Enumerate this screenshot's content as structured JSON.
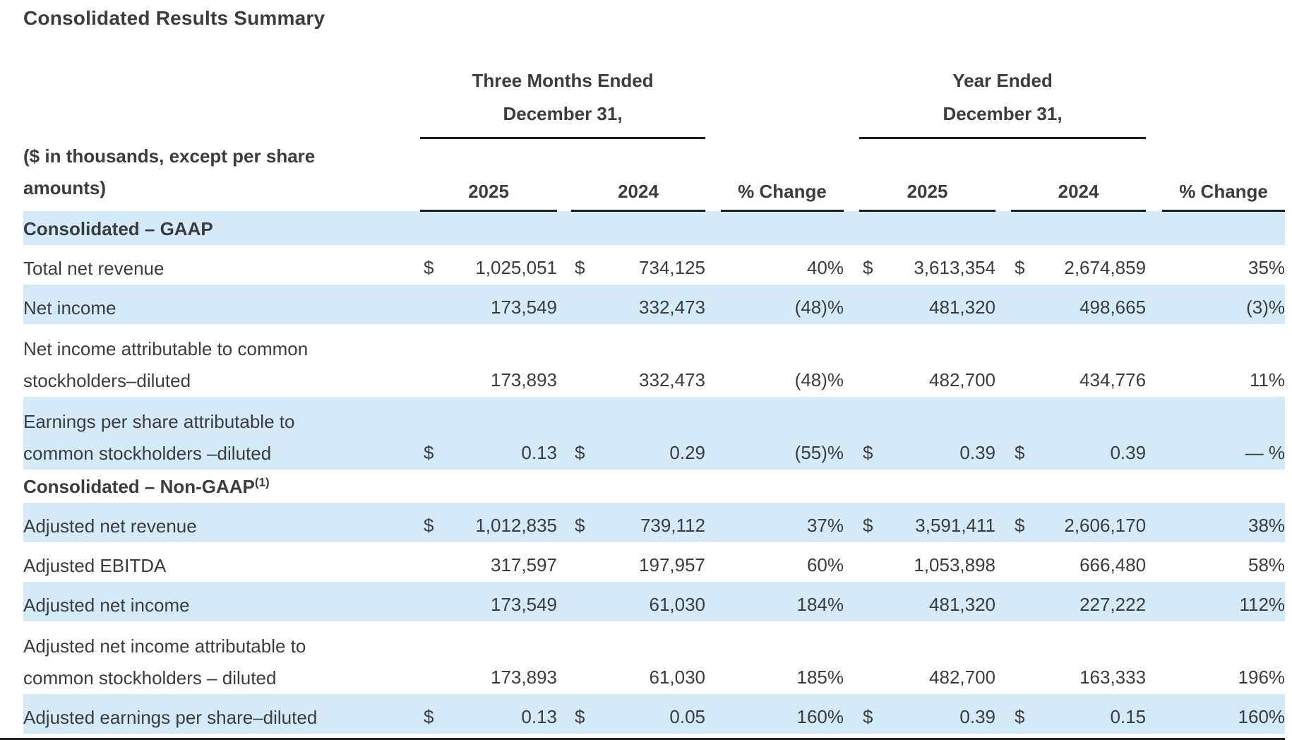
{
  "page": {
    "title": "Consolidated Results Summary"
  },
  "colors": {
    "highlight_blue": "#d5eaf9",
    "text": "#3c3c3c",
    "rule": "#1f1f1f"
  },
  "table": {
    "group_headers": [
      {
        "line1": "Three Months Ended",
        "line2": "December 31,"
      },
      {
        "line1": "Year Ended",
        "line2": "December 31,"
      }
    ],
    "corner_label_line1": "($ in thousands, except per share",
    "corner_label_line2": "amounts)",
    "column_headers": [
      "2025",
      "2024",
      "% Change",
      "2025",
      "2024",
      "% Change"
    ],
    "rows": [
      {
        "type": "section",
        "highlight": true,
        "label": "Consolidated – GAAP",
        "sup": ""
      },
      {
        "type": "data",
        "highlight": false,
        "label_lines": [
          "Total net revenue"
        ],
        "cells": [
          {
            "d": "$",
            "v": "1,025,051"
          },
          {
            "d": "$",
            "v": "734,125"
          },
          {
            "d": "",
            "v": "40%"
          },
          {
            "d": "$",
            "v": "3,613,354"
          },
          {
            "d": "$",
            "v": "2,674,859"
          },
          {
            "d": "",
            "v": "35%"
          }
        ]
      },
      {
        "type": "data",
        "highlight": true,
        "label_lines": [
          "Net income"
        ],
        "cells": [
          {
            "d": "",
            "v": "173,549"
          },
          {
            "d": "",
            "v": "332,473"
          },
          {
            "d": "",
            "v": "(48)%"
          },
          {
            "d": "",
            "v": "481,320"
          },
          {
            "d": "",
            "v": "498,665"
          },
          {
            "d": "",
            "v": "(3)%"
          }
        ]
      },
      {
        "type": "data",
        "highlight": false,
        "label_lines": [
          "Net income attributable to common",
          "stockholders–diluted"
        ],
        "cells": [
          {
            "d": "",
            "v": "173,893"
          },
          {
            "d": "",
            "v": "332,473"
          },
          {
            "d": "",
            "v": "(48)%"
          },
          {
            "d": "",
            "v": "482,700"
          },
          {
            "d": "",
            "v": "434,776"
          },
          {
            "d": "",
            "v": "11%"
          }
        ]
      },
      {
        "type": "data",
        "highlight": true,
        "label_lines": [
          "Earnings per share attributable to",
          "common stockholders –diluted"
        ],
        "cells": [
          {
            "d": "$",
            "v": "0.13"
          },
          {
            "d": "$",
            "v": "0.29"
          },
          {
            "d": "",
            "v": "(55)%"
          },
          {
            "d": "$",
            "v": "0.39"
          },
          {
            "d": "$",
            "v": "0.39"
          },
          {
            "d": "",
            "v": "— %"
          }
        ]
      },
      {
        "type": "section",
        "highlight": false,
        "label": "Consolidated – Non-GAAP",
        "sup": "(1)"
      },
      {
        "type": "data",
        "highlight": true,
        "label_lines": [
          "Adjusted net revenue"
        ],
        "cells": [
          {
            "d": "$",
            "v": "1,012,835"
          },
          {
            "d": "$",
            "v": "739,112"
          },
          {
            "d": "",
            "v": "37%"
          },
          {
            "d": "$",
            "v": "3,591,411"
          },
          {
            "d": "$",
            "v": "2,606,170"
          },
          {
            "d": "",
            "v": "38%"
          }
        ]
      },
      {
        "type": "data",
        "highlight": false,
        "label_lines": [
          "Adjusted EBITDA"
        ],
        "cells": [
          {
            "d": "",
            "v": "317,597"
          },
          {
            "d": "",
            "v": "197,957"
          },
          {
            "d": "",
            "v": "60%"
          },
          {
            "d": "",
            "v": "1,053,898"
          },
          {
            "d": "",
            "v": "666,480"
          },
          {
            "d": "",
            "v": "58%"
          }
        ]
      },
      {
        "type": "data",
        "highlight": true,
        "label_lines": [
          "Adjusted net income"
        ],
        "cells": [
          {
            "d": "",
            "v": "173,549"
          },
          {
            "d": "",
            "v": "61,030"
          },
          {
            "d": "",
            "v": "184%"
          },
          {
            "d": "",
            "v": "481,320"
          },
          {
            "d": "",
            "v": "227,222"
          },
          {
            "d": "",
            "v": "112%"
          }
        ]
      },
      {
        "type": "data",
        "highlight": false,
        "label_lines": [
          "Adjusted net income attributable to",
          "common stockholders – diluted"
        ],
        "cells": [
          {
            "d": "",
            "v": "173,893"
          },
          {
            "d": "",
            "v": "61,030"
          },
          {
            "d": "",
            "v": "185%"
          },
          {
            "d": "",
            "v": "482,700"
          },
          {
            "d": "",
            "v": "163,333"
          },
          {
            "d": "",
            "v": "196%"
          }
        ]
      },
      {
        "type": "data",
        "highlight": true,
        "label_lines": [
          "Adjusted earnings per share–diluted"
        ],
        "cells": [
          {
            "d": "$",
            "v": "0.13"
          },
          {
            "d": "$",
            "v": "0.05"
          },
          {
            "d": "",
            "v": "160%"
          },
          {
            "d": "$",
            "v": "0.39"
          },
          {
            "d": "$",
            "v": "0.15"
          },
          {
            "d": "",
            "v": "160%"
          }
        ]
      }
    ]
  }
}
